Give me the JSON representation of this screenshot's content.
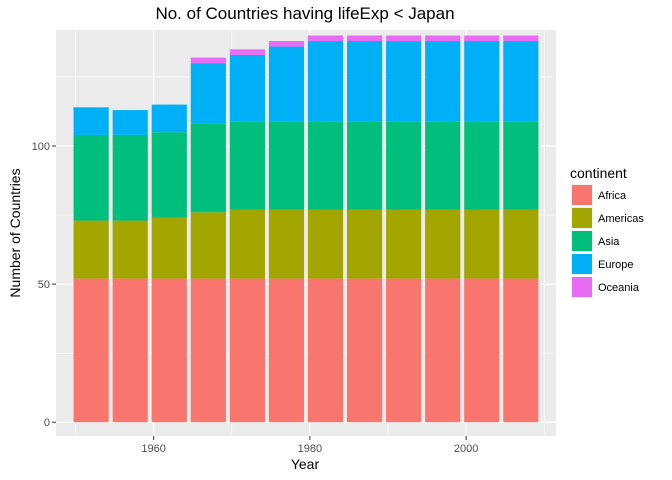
{
  "chart_data": {
    "type": "bar",
    "stacked": true,
    "title": "No. of Countries having lifeExp < Japan",
    "xlabel": "Year",
    "ylabel": "Number of Countries",
    "x": [
      1952,
      1957,
      1962,
      1967,
      1972,
      1977,
      1982,
      1987,
      1992,
      1997,
      2002,
      2007
    ],
    "xticks": [
      1960,
      1980,
      2000
    ],
    "xlim": [
      1947.5,
      2011.5
    ],
    "yticks": [
      0,
      50,
      100
    ],
    "ylim": [
      -5,
      142
    ],
    "grid": true,
    "legend_title": "continent",
    "legend_position": "right",
    "series": [
      {
        "name": "Africa",
        "color": "#F8766D",
        "values": [
          52,
          52,
          52,
          52,
          52,
          52,
          52,
          52,
          52,
          52,
          52,
          52
        ]
      },
      {
        "name": "Americas",
        "color": "#A3A500",
        "values": [
          21,
          21,
          22,
          24,
          25,
          25,
          25,
          25,
          25,
          25,
          25,
          25
        ]
      },
      {
        "name": "Asia",
        "color": "#00BF7D",
        "values": [
          31,
          31,
          31,
          32,
          32,
          32,
          32,
          32,
          32,
          32,
          32,
          32
        ]
      },
      {
        "name": "Europe",
        "color": "#00B0F6",
        "values": [
          10,
          9,
          10,
          22,
          24,
          27,
          29,
          29,
          29,
          29,
          29,
          29
        ]
      },
      {
        "name": "Oceania",
        "color": "#E76BF3",
        "values": [
          0,
          0,
          0,
          2,
          2,
          2,
          2,
          2,
          2,
          2,
          2,
          2
        ]
      }
    ]
  }
}
